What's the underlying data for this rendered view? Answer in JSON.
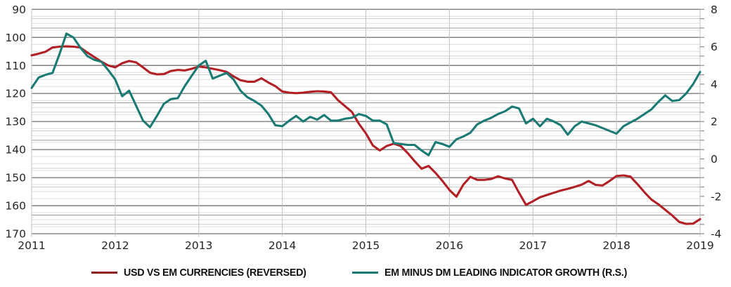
{
  "chart_data": {
    "type": "line",
    "title": "",
    "x_years": [
      "2011",
      "2012",
      "2013",
      "2014",
      "2015",
      "2016",
      "2017",
      "2018",
      "2019"
    ],
    "points_per_year": 12,
    "left_axis": {
      "min": 90,
      "max": 170,
      "tick_step": 10,
      "minor_step": 2.5,
      "top_value_at_top": true,
      "ticks": [
        "90",
        "100",
        "110",
        "120",
        "130",
        "140",
        "150",
        "160",
        "170"
      ]
    },
    "right_axis": {
      "min": -4,
      "max": 8,
      "tick_step": 2,
      "major_step": 1,
      "minor_step": 0.5,
      "ticks": [
        "8",
        "6",
        "4",
        "2",
        "0",
        "-2",
        "-4"
      ]
    },
    "grid": {
      "minor_left_color": "#dedede",
      "minor_right_color": "#cbcbcb",
      "major_left_color": "#7f7f7f",
      "major_right_color": "#9b9b9b",
      "year_line_color": "#c2c2c2",
      "tick_color": "#8f8f8f"
    },
    "series": [
      {
        "name": "USD VS EM CURRENCIES (REVERSED)",
        "axis": "left",
        "color": "#b22025",
        "values": [
          106.4,
          105.8,
          105.1,
          103.6,
          103.3,
          103.2,
          103.3,
          103.6,
          105.4,
          107.0,
          108.6,
          110.0,
          110.7,
          109.2,
          108.4,
          108.9,
          110.7,
          112.6,
          113.2,
          113.1,
          112.0,
          111.6,
          111.8,
          111.2,
          110.4,
          110.7,
          111.2,
          111.7,
          112.3,
          113.9,
          115.3,
          115.8,
          115.8,
          114.6,
          116.1,
          117.4,
          119.3,
          119.7,
          119.9,
          119.7,
          119.4,
          119.2,
          119.3,
          119.6,
          122.4,
          124.5,
          126.6,
          130.8,
          134.2,
          138.5,
          140.3,
          138.7,
          137.9,
          138.7,
          141.2,
          144.1,
          146.8,
          145.8,
          148.3,
          151.2,
          154.4,
          156.8,
          152.5,
          149.7,
          150.8,
          150.8,
          150.5,
          149.5,
          150.3,
          150.8,
          155.4,
          159.7,
          158.4,
          157.0,
          156.2,
          155.4,
          154.6,
          154.0,
          153.3,
          152.5,
          151.2,
          152.6,
          152.8,
          151.2,
          149.4,
          149.2,
          149.6,
          152.3,
          155.2,
          157.8,
          159.5,
          161.5,
          163.5,
          165.8,
          166.5,
          166.4,
          164.8
        ]
      },
      {
        "name": "EM MINUS DM LEADING INDICATOR GROWTH (R.S.)",
        "axis": "right",
        "color": "#1b7b74",
        "values": [
          3.8,
          4.35,
          4.5,
          4.6,
          5.6,
          6.7,
          6.5,
          5.95,
          5.5,
          5.3,
          5.2,
          4.75,
          4.25,
          3.35,
          3.65,
          2.85,
          2.05,
          1.7,
          2.3,
          2.95,
          3.2,
          3.25,
          3.9,
          4.45,
          5.0,
          5.25,
          4.3,
          4.45,
          4.6,
          4.25,
          3.65,
          3.3,
          3.1,
          2.85,
          2.4,
          1.8,
          1.75,
          2.05,
          2.3,
          2.0,
          2.25,
          2.1,
          2.35,
          2.05,
          2.05,
          2.15,
          2.2,
          2.4,
          2.3,
          2.05,
          2.05,
          1.85,
          0.85,
          0.8,
          0.75,
          0.75,
          0.45,
          0.2,
          0.9,
          0.8,
          0.65,
          1.05,
          1.2,
          1.4,
          1.85,
          2.05,
          2.2,
          2.4,
          2.55,
          2.8,
          2.7,
          1.9,
          2.15,
          1.75,
          2.15,
          2.0,
          1.8,
          1.3,
          1.75,
          2.0,
          1.9,
          1.8,
          1.65,
          1.5,
          1.35,
          1.75,
          1.95,
          2.15,
          2.4,
          2.65,
          3.05,
          3.4,
          3.1,
          3.15,
          3.5,
          4.0,
          4.65
        ]
      }
    ]
  },
  "legend": {
    "items": [
      {
        "label": "USD VS EM CURRENCIES (REVERSED)",
        "swatch_color": "#8e1f21"
      },
      {
        "label": "EM MINUS DM LEADING INDICATOR GROWTH (R.S.)",
        "swatch_color": "#1b7b74"
      }
    ]
  },
  "labels": {
    "text_color": "#262626"
  }
}
